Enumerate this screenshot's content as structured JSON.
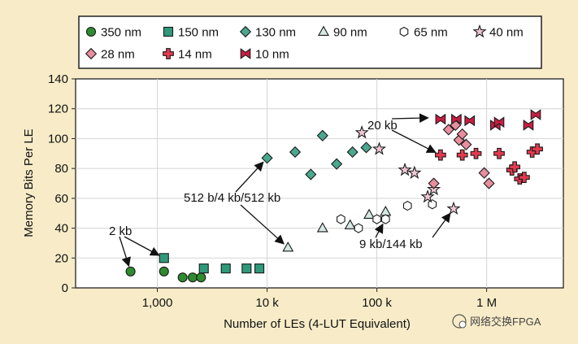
{
  "chart_data": {
    "type": "scatter",
    "xscale": "log",
    "xlabel": "Number of LEs (4-LUT Equivalent)",
    "ylabel": "Memory Bits Per LE",
    "xlim": [
      180,
      5000000
    ],
    "ylim": [
      0,
      140
    ],
    "yticks": [
      0,
      20,
      40,
      60,
      80,
      100,
      120,
      140
    ],
    "xticks": [
      {
        "value": 1000,
        "label": "1,000"
      },
      {
        "value": 10000,
        "label": "10 k"
      },
      {
        "value": 100000,
        "label": "100 k"
      },
      {
        "value": 1000000,
        "label": "1 M"
      }
    ],
    "grid": true,
    "legend_position": "top",
    "series": [
      {
        "name": "350 nm",
        "marker": "circle",
        "color": "#2e8b2e",
        "points": [
          [
            570,
            11
          ],
          [
            1150,
            11
          ],
          [
            1700,
            7
          ],
          [
            2100,
            7
          ],
          [
            2500,
            7
          ]
        ]
      },
      {
        "name": "150 nm",
        "marker": "square",
        "color": "#2f9a7a",
        "points": [
          [
            1150,
            20
          ],
          [
            2650,
            13
          ],
          [
            4200,
            13
          ],
          [
            6500,
            13
          ],
          [
            8500,
            13
          ]
        ]
      },
      {
        "name": "130 nm",
        "marker": "diamond",
        "color": "#4aa88e",
        "points": [
          [
            10000,
            87
          ],
          [
            18000,
            91
          ],
          [
            25000,
            76
          ],
          [
            32000,
            102
          ],
          [
            43000,
            83
          ],
          [
            60000,
            91
          ],
          [
            80000,
            94
          ]
        ]
      },
      {
        "name": "90 nm",
        "marker": "triangle",
        "color": "#d4e8e4",
        "points": [
          [
            15500,
            27
          ],
          [
            32000,
            40
          ],
          [
            57000,
            42
          ],
          [
            85000,
            49
          ],
          [
            120000,
            51
          ]
        ]
      },
      {
        "name": "65 nm",
        "marker": "hexagon",
        "color": "#ffffff",
        "points": [
          [
            47000,
            46
          ],
          [
            68000,
            40
          ],
          [
            100000,
            46
          ],
          [
            120000,
            46
          ],
          [
            190000,
            55
          ],
          [
            320000,
            56
          ]
        ]
      },
      {
        "name": "40 nm",
        "marker": "star",
        "color": "#f0c8d4",
        "points": [
          [
            73000,
            104
          ],
          [
            105000,
            93
          ],
          [
            180000,
            79
          ],
          [
            220000,
            77
          ],
          [
            290000,
            61
          ],
          [
            330000,
            66
          ],
          [
            500000,
            53
          ]
        ]
      },
      {
        "name": "28 nm",
        "marker": "diamond",
        "color": "#e88e9e",
        "points": [
          [
            330000,
            70
          ],
          [
            450000,
            106
          ],
          [
            520000,
            109
          ],
          [
            560000,
            99
          ],
          [
            600000,
            103
          ],
          [
            650000,
            96
          ],
          [
            950000,
            77
          ],
          [
            1050000,
            70
          ]
        ]
      },
      {
        "name": "14 nm",
        "marker": "plus",
        "color": "#e53a4e",
        "points": [
          [
            380000,
            89
          ],
          [
            600000,
            89
          ],
          [
            800000,
            90
          ],
          [
            1300000,
            90
          ],
          [
            1700000,
            79
          ],
          [
            1800000,
            81
          ],
          [
            2000000,
            73
          ],
          [
            2200000,
            74
          ],
          [
            2600000,
            91
          ],
          [
            2900000,
            93
          ]
        ]
      },
      {
        "name": "10 nm",
        "marker": "bowtie",
        "color": "#c91d42",
        "points": [
          [
            380000,
            113
          ],
          [
            530000,
            113
          ],
          [
            700000,
            112
          ],
          [
            1200000,
            109
          ],
          [
            1300000,
            111
          ],
          [
            2400000,
            109
          ],
          [
            2800000,
            116
          ]
        ]
      }
    ],
    "annotations": [
      {
        "text": "2 kb",
        "arrows": [
          [
            570,
            11
          ],
          [
            1150,
            20
          ]
        ]
      },
      {
        "text": "512 b/4 kb/512 kb",
        "arrows": [
          [
            10000,
            87
          ],
          [
            15500,
            27
          ]
        ]
      },
      {
        "text": "20 kb",
        "arrows": [
          [
            330000,
            114
          ],
          [
            380000,
            89
          ]
        ]
      },
      {
        "text": "9 kb/144 kb",
        "arrows": [
          [
            120000,
            46
          ],
          [
            500000,
            53
          ]
        ]
      }
    ]
  },
  "watermark": "网络交换FPGA"
}
